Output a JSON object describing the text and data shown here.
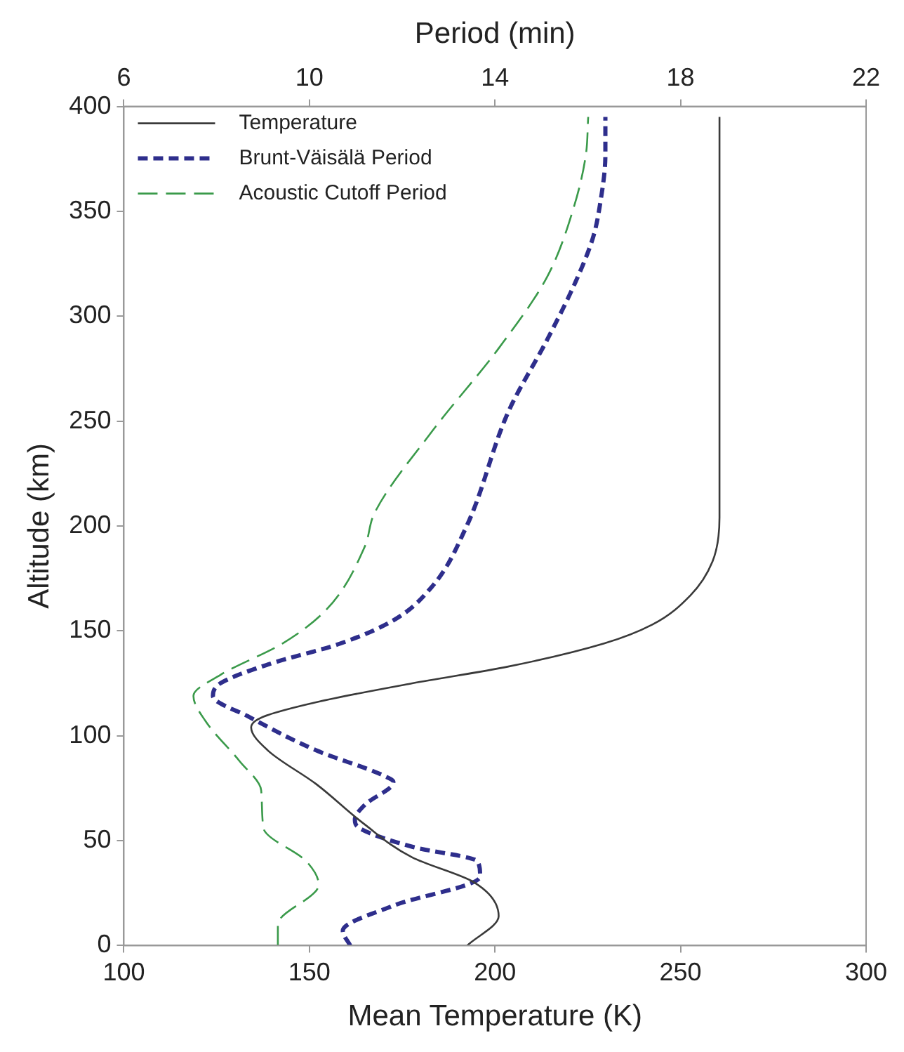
{
  "chart_data": {
    "type": "line",
    "xlabel": "Mean Temperature (K)",
    "x2label": "Period (min)",
    "ylabel": "Altitude (km)",
    "xlim": [
      100,
      300
    ],
    "xticks": [
      100,
      150,
      200,
      250,
      300
    ],
    "x2lim": [
      6,
      22
    ],
    "x2ticks": [
      6,
      10,
      14,
      18,
      22
    ],
    "ylim": [
      0,
      400
    ],
    "yticks": [
      0,
      50,
      100,
      150,
      200,
      250,
      300,
      350,
      400
    ],
    "grid": false,
    "legend": "top left",
    "series": [
      {
        "name": "Temperature",
        "color": "#3a3a3a",
        "line_style": "solid",
        "x": [
          192.5,
          201,
          194.5,
          177.7,
          164.7,
          151.8,
          138.8,
          134.3,
          137.5,
          151.8,
          177.7,
          203.6,
          229.4,
          242.4,
          252.7,
          258.6,
          260.5,
          260.5
        ],
        "values": [
          0,
          14,
          30,
          42,
          58,
          77,
          93,
          104,
          109,
          116,
          125,
          133,
          144,
          153,
          167,
          183,
          204,
          395
        ]
      },
      {
        "name": "Brunt-Väisälä Period",
        "axis": "x2",
        "color": "#2e2e8c",
        "line_style": "dashed",
        "x": [
          10.88,
          10.72,
          11.81,
          13.68,
          13.63,
          12.23,
          11.08,
          10.98,
          11.19,
          11.81,
          11.6,
          10.15,
          8.7,
          7.92,
          8.08,
          9.11,
          10.67,
          11.81,
          12.64,
          13.37,
          14.3,
          15.13,
          15.75,
          16.12,
          16.27,
          16.38,
          16.38
        ],
        "values": [
          0,
          7,
          19,
          33,
          40,
          47,
          56,
          60,
          67,
          78,
          81,
          93,
          109,
          119,
          125,
          134,
          144,
          155,
          171,
          199,
          255,
          289,
          317,
          338,
          354,
          377,
          395
        ]
      },
      {
        "name": "Acoustic Cutoff Period",
        "axis": "x2",
        "color": "#3a9a4a",
        "line_style": "dashed",
        "x": [
          9.32,
          9.32,
          10.2,
          9.94,
          9.01,
          8.96,
          8.49,
          7.76,
          7.5,
          8.08,
          9.42,
          10.36,
          11.19,
          11.4,
          12.64,
          14.09,
          15.13,
          15.7,
          15.96,
          16.01
        ],
        "values": [
          0,
          10,
          29,
          40,
          56,
          74,
          88,
          107,
          119,
          129,
          144,
          160,
          190,
          206,
          245,
          285,
          319,
          352,
          377,
          395
        ]
      }
    ]
  }
}
